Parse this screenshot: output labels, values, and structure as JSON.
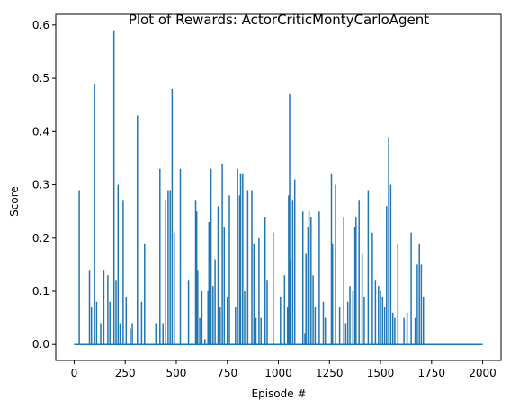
{
  "chart_data": {
    "type": "line",
    "title": "Plot of Rewards: ActorCriticMontyCarloAgent",
    "xlabel": "Episode #",
    "ylabel": "Score",
    "xlim": [
      -90,
      2090
    ],
    "ylim": [
      -0.03,
      0.62
    ],
    "xticks": [
      0,
      250,
      500,
      750,
      1000,
      1250,
      1500,
      1750,
      2000
    ],
    "yticks": [
      0.0,
      0.1,
      0.2,
      0.3,
      0.4,
      0.5,
      0.6
    ],
    "ytick_labels": [
      "0.0",
      "0.1",
      "0.2",
      "0.3",
      "0.4",
      "0.5",
      "0.6"
    ],
    "grid": false,
    "line_color": "#1f77b4",
    "series": [
      {
        "spikes": [
          [
            25,
            0.29
          ],
          [
            75,
            0.14
          ],
          [
            85,
            0.07
          ],
          [
            100,
            0.49
          ],
          [
            110,
            0.08
          ],
          [
            130,
            0.04
          ],
          [
            145,
            0.14
          ],
          [
            165,
            0.13
          ],
          [
            175,
            0.08
          ],
          [
            195,
            0.59
          ],
          [
            205,
            0.12
          ],
          [
            215,
            0.3
          ],
          [
            225,
            0.04
          ],
          [
            240,
            0.27
          ],
          [
            255,
            0.09
          ],
          [
            275,
            0.03
          ],
          [
            285,
            0.04
          ],
          [
            310,
            0.43
          ],
          [
            330,
            0.08
          ],
          [
            345,
            0.19
          ],
          [
            400,
            0.04
          ],
          [
            420,
            0.33
          ],
          [
            435,
            0.04
          ],
          [
            448,
            0.27
          ],
          [
            460,
            0.29
          ],
          [
            470,
            0.29
          ],
          [
            480,
            0.48
          ],
          [
            490,
            0.21
          ],
          [
            520,
            0.33
          ],
          [
            560,
            0.12
          ],
          [
            595,
            0.27
          ],
          [
            600,
            0.25
          ],
          [
            605,
            0.14
          ],
          [
            615,
            0.05
          ],
          [
            625,
            0.1
          ],
          [
            640,
            0.01
          ],
          [
            655,
            0.1
          ],
          [
            660,
            0.23
          ],
          [
            670,
            0.33
          ],
          [
            680,
            0.11
          ],
          [
            690,
            0.16
          ],
          [
            705,
            0.26
          ],
          [
            715,
            0.07
          ],
          [
            725,
            0.34
          ],
          [
            735,
            0.22
          ],
          [
            750,
            0.09
          ],
          [
            760,
            0.28
          ],
          [
            790,
            0.07
          ],
          [
            800,
            0.33
          ],
          [
            810,
            0.28
          ],
          [
            815,
            0.32
          ],
          [
            825,
            0.32
          ],
          [
            835,
            0.1
          ],
          [
            850,
            0.29
          ],
          [
            870,
            0.29
          ],
          [
            880,
            0.19
          ],
          [
            890,
            0.05
          ],
          [
            905,
            0.2
          ],
          [
            915,
            0.05
          ],
          [
            935,
            0.24
          ],
          [
            945,
            0.12
          ],
          [
            975,
            0.21
          ],
          [
            1010,
            0.09
          ],
          [
            1030,
            0.13
          ],
          [
            1045,
            0.07
          ],
          [
            1050,
            0.28
          ],
          [
            1055,
            0.47
          ],
          [
            1060,
            0.16
          ],
          [
            1070,
            0.27
          ],
          [
            1080,
            0.31
          ],
          [
            1120,
            0.25
          ],
          [
            1130,
            0.02
          ],
          [
            1135,
            0.17
          ],
          [
            1145,
            0.22
          ],
          [
            1150,
            0.25
          ],
          [
            1160,
            0.24
          ],
          [
            1170,
            0.13
          ],
          [
            1180,
            0.07
          ],
          [
            1200,
            0.25
          ],
          [
            1220,
            0.08
          ],
          [
            1230,
            0.05
          ],
          [
            1260,
            0.32
          ],
          [
            1265,
            0.19
          ],
          [
            1280,
            0.3
          ],
          [
            1300,
            0.07
          ],
          [
            1320,
            0.24
          ],
          [
            1330,
            0.04
          ],
          [
            1340,
            0.08
          ],
          [
            1350,
            0.11
          ],
          [
            1365,
            0.1
          ],
          [
            1375,
            0.22
          ],
          [
            1380,
            0.24
          ],
          [
            1395,
            0.27
          ],
          [
            1410,
            0.17
          ],
          [
            1420,
            0.09
          ],
          [
            1440,
            0.29
          ],
          [
            1460,
            0.21
          ],
          [
            1475,
            0.12
          ],
          [
            1490,
            0.11
          ],
          [
            1500,
            0.1
          ],
          [
            1510,
            0.09
          ],
          [
            1520,
            0.07
          ],
          [
            1530,
            0.26
          ],
          [
            1540,
            0.39
          ],
          [
            1550,
            0.3
          ],
          [
            1560,
            0.06
          ],
          [
            1570,
            0.05
          ],
          [
            1585,
            0.19
          ],
          [
            1615,
            0.05
          ],
          [
            1630,
            0.06
          ],
          [
            1650,
            0.21
          ],
          [
            1670,
            0.05
          ],
          [
            1680,
            0.15
          ],
          [
            1690,
            0.19
          ],
          [
            1700,
            0.15
          ],
          [
            1710,
            0.09
          ]
        ]
      }
    ]
  }
}
